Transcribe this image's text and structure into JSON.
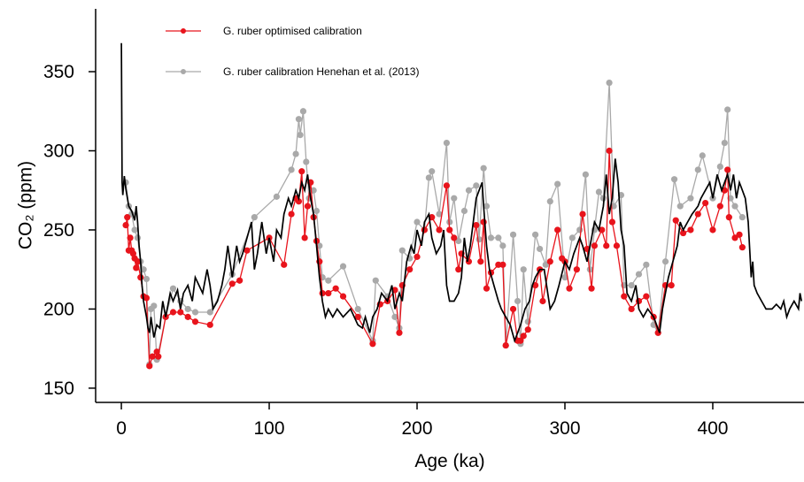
{
  "chart_data": {
    "type": "line",
    "x_label": "Age (ka)",
    "y_label": "CO₂ (ppm)",
    "xlim": [
      -17.4,
      461.7
    ],
    "ylim": [
      141,
      389.7
    ],
    "xticks": [
      0,
      100,
      200,
      300,
      400
    ],
    "yticks": [
      150,
      200,
      250,
      300,
      350
    ],
    "grid": false,
    "legend": "top-left",
    "series": [
      {
        "color": "#000000",
        "markers": false,
        "x": [
          0,
          0.5,
          1,
          2,
          3,
          5,
          7,
          9,
          10,
          11,
          12,
          13,
          14,
          15,
          17,
          18,
          19,
          20,
          22,
          24,
          26,
          28,
          30,
          33,
          35,
          38,
          40,
          42,
          45,
          48,
          50,
          55,
          58,
          60,
          62,
          65,
          68,
          70,
          72,
          75,
          78,
          80,
          82,
          85,
          88,
          90,
          92,
          95,
          98,
          100,
          103,
          105,
          108,
          110,
          113,
          115,
          118,
          120,
          122,
          124,
          126,
          128,
          130,
          132,
          134,
          136,
          138,
          140,
          143,
          146,
          150,
          155,
          160,
          163,
          165,
          168,
          170,
          173,
          176,
          180,
          183,
          185,
          188,
          190,
          193,
          196,
          198,
          200,
          203,
          205,
          208,
          210,
          213,
          216,
          218,
          220,
          222,
          225,
          228,
          230,
          232,
          234,
          236,
          238,
          240,
          242,
          244,
          245,
          247,
          249,
          252,
          255,
          257,
          260,
          263,
          266,
          268,
          270,
          273,
          276,
          278,
          280,
          283,
          286,
          290,
          293,
          296,
          300,
          303,
          306,
          310,
          312,
          315,
          318,
          320,
          323,
          326,
          328,
          330,
          332,
          334,
          336,
          338,
          340,
          342,
          345,
          348,
          350,
          353,
          356,
          360,
          362,
          364,
          366,
          368,
          370,
          373,
          376,
          378,
          380,
          383,
          386,
          390,
          392,
          395,
          398,
          400,
          403,
          406,
          408,
          410,
          412,
          414,
          416,
          418,
          420,
          422,
          424,
          426,
          427,
          428,
          430,
          433,
          436,
          440,
          443,
          446,
          448,
          450,
          452,
          455,
          458,
          459,
          460
        ],
        "values": [
          368,
          280,
          272,
          284,
          276,
          265,
          262,
          256,
          265,
          255,
          240,
          230,
          215,
          205,
          195,
          188,
          185,
          195,
          182,
          190,
          188,
          205,
          195,
          210,
          205,
          212,
          200,
          210,
          215,
          205,
          220,
          210,
          225,
          215,
          200,
          205,
          215,
          225,
          240,
          220,
          240,
          230,
          235,
          245,
          255,
          225,
          235,
          255,
          235,
          245,
          230,
          250,
          245,
          260,
          270,
          265,
          275,
          270,
          280,
          275,
          285,
          270,
          260,
          240,
          220,
          205,
          195,
          200,
          195,
          200,
          195,
          200,
          190,
          188,
          195,
          185,
          195,
          200,
          210,
          205,
          215,
          200,
          210,
          205,
          230,
          240,
          235,
          250,
          240,
          255,
          260,
          245,
          235,
          240,
          250,
          215,
          205,
          205,
          210,
          220,
          245,
          230,
          240,
          255,
          270,
          275,
          280,
          265,
          240,
          225,
          215,
          205,
          200,
          195,
          190,
          180,
          185,
          190,
          200,
          205,
          215,
          220,
          225,
          225,
          200,
          205,
          215,
          230,
          225,
          235,
          245,
          240,
          230,
          245,
          255,
          250,
          265,
          285,
          260,
          270,
          295,
          280,
          250,
          240,
          210,
          205,
          215,
          200,
          195,
          200,
          195,
          190,
          185,
          200,
          210,
          220,
          230,
          240,
          255,
          250,
          255,
          260,
          265,
          270,
          275,
          280,
          270,
          285,
          275,
          280,
          285,
          275,
          285,
          270,
          280,
          275,
          270,
          255,
          220,
          230,
          215,
          210,
          205,
          200,
          200,
          203,
          200,
          205,
          195,
          200,
          205,
          200,
          210,
          205
        ]
      },
      {
        "name": "G. ruber optimised calibration",
        "color": "#e8141c",
        "markers": true,
        "x": [
          3,
          4,
          5,
          6,
          7,
          8,
          9,
          10,
          11,
          13,
          15,
          17,
          19,
          21,
          24,
          25,
          30,
          35,
          40,
          45,
          50,
          60,
          75,
          80,
          85,
          100,
          110,
          115,
          118,
          120,
          122,
          124,
          126,
          128,
          130,
          132,
          134,
          136,
          140,
          145,
          150,
          160,
          170,
          175,
          180,
          185,
          188,
          190,
          195,
          200,
          205,
          210,
          215,
          220,
          222,
          225,
          228,
          230,
          235,
          240,
          243,
          245,
          247,
          250,
          255,
          258,
          260,
          265,
          268,
          270,
          272,
          275,
          280,
          283,
          285,
          290,
          295,
          298,
          300,
          303,
          308,
          312,
          315,
          318,
          320,
          325,
          328,
          330,
          332,
          335,
          340,
          345,
          350,
          355,
          360,
          363,
          368,
          372,
          375,
          380,
          385,
          390,
          395,
          400,
          405,
          408,
          410,
          411,
          415,
          418,
          420
        ],
        "values": [
          253,
          258,
          237,
          245,
          237,
          235,
          232,
          226,
          230,
          220,
          208,
          207,
          164,
          170,
          173,
          170,
          195,
          198,
          198,
          195,
          192,
          190,
          216,
          218,
          237,
          245,
          228,
          260,
          270,
          268,
          287,
          245,
          265,
          280,
          258,
          243,
          230,
          210,
          210,
          213,
          208,
          195,
          178,
          203,
          205,
          212,
          185,
          215,
          225,
          233,
          250,
          258,
          250,
          278,
          250,
          245,
          225,
          235,
          230,
          253,
          230,
          255,
          213,
          223,
          228,
          228,
          177,
          200,
          180,
          180,
          183,
          187,
          215,
          225,
          205,
          230,
          250,
          232,
          230,
          213,
          225,
          260,
          238,
          213,
          240,
          250,
          240,
          300,
          255,
          240,
          208,
          200,
          205,
          208,
          195,
          185,
          215,
          215,
          256,
          248,
          250,
          260,
          267,
          250,
          265,
          275,
          288,
          258,
          245,
          247,
          239
        ]
      },
      {
        "name": "G. ruber calibration Henehan et al. (2013)",
        "color": "#a9a9a9",
        "markers": true,
        "x": [
          3,
          5,
          7,
          9,
          11,
          13,
          15,
          17,
          19,
          20,
          22,
          24,
          30,
          35,
          40,
          45,
          50,
          60,
          75,
          90,
          105,
          115,
          118,
          120,
          121,
          123,
          125,
          127,
          130,
          132,
          134,
          136,
          140,
          150,
          160,
          170,
          172,
          180,
          185,
          188,
          190,
          195,
          200,
          205,
          208,
          210,
          215,
          220,
          222,
          225,
          228,
          232,
          235,
          240,
          242,
          245,
          247,
          250,
          255,
          258,
          260,
          265,
          268,
          270,
          272,
          275,
          280,
          283,
          287,
          290,
          295,
          300,
          305,
          310,
          314,
          317,
          320,
          323,
          326,
          330,
          333,
          338,
          340,
          345,
          350,
          355,
          360,
          363,
          368,
          374,
          378,
          385,
          390,
          393,
          400,
          405,
          408,
          410,
          412,
          415,
          420
        ],
        "values": [
          280,
          265,
          260,
          250,
          245,
          230,
          225,
          219,
          165,
          200,
          202,
          168,
          195,
          213,
          205,
          200,
          198,
          198,
          222,
          258,
          271,
          288,
          298,
          320,
          310,
          325,
          293,
          270,
          275,
          262,
          240,
          220,
          218,
          227,
          200,
          180,
          218,
          208,
          195,
          188,
          237,
          232,
          255,
          250,
          283,
          287,
          260,
          305,
          255,
          270,
          243,
          262,
          275,
          278,
          244,
          289,
          265,
          245,
          245,
          240,
          177,
          247,
          205,
          178,
          225,
          192,
          247,
          238,
          228,
          268,
          279,
          220,
          245,
          250,
          285,
          225,
          250,
          274,
          270,
          343,
          265,
          272,
          215,
          215,
          222,
          228,
          190,
          185,
          230,
          282,
          265,
          270,
          288,
          297,
          270,
          290,
          305,
          326,
          270,
          265,
          258
        ]
      }
    ]
  }
}
